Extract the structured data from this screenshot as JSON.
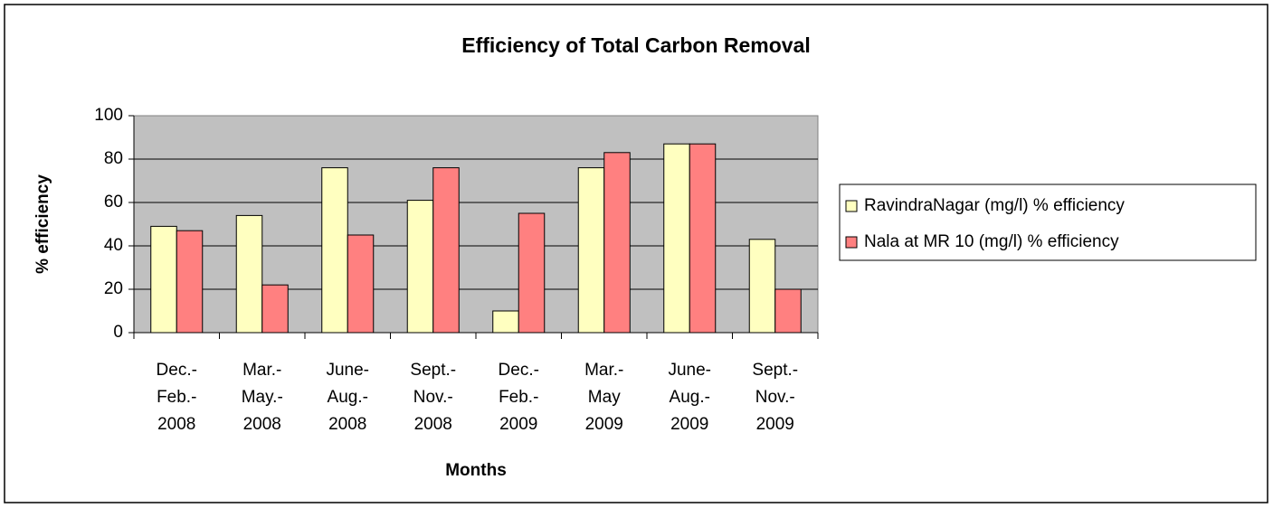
{
  "chart_data": {
    "type": "bar",
    "title": "Efficiency of Total Carbon Removal",
    "x_label": "Months",
    "y_label": "% efficiency",
    "categories": [
      [
        "Dec.-",
        "Feb.-",
        "2008"
      ],
      [
        "Mar.-",
        "May.-",
        "2008"
      ],
      [
        "June-",
        "Aug.-",
        "2008"
      ],
      [
        "Sept.-",
        "Nov.-",
        "2008"
      ],
      [
        "Dec.-",
        "Feb.-",
        "2009"
      ],
      [
        "Mar.-",
        "May",
        "2009"
      ],
      [
        "June-",
        "Aug.-",
        "2009"
      ],
      [
        "Sept.-",
        "Nov.-",
        "2009"
      ]
    ],
    "series": [
      {
        "name": "RavindraNagar (mg/l) % efficiency",
        "color": "#ffffc0",
        "values": [
          49,
          54,
          76,
          61,
          10,
          76,
          87,
          43
        ]
      },
      {
        "name": "Nala at MR 10 (mg/l) % efficiency",
        "color": "#ff8080",
        "values": [
          47,
          22,
          45,
          76,
          55,
          83,
          87,
          20
        ]
      }
    ],
    "ylim": [
      0,
      100
    ],
    "yticks": [
      0,
      20,
      40,
      60,
      80,
      100
    ],
    "grid": true,
    "plot_background": "#c0c0c0",
    "legend": "right"
  }
}
